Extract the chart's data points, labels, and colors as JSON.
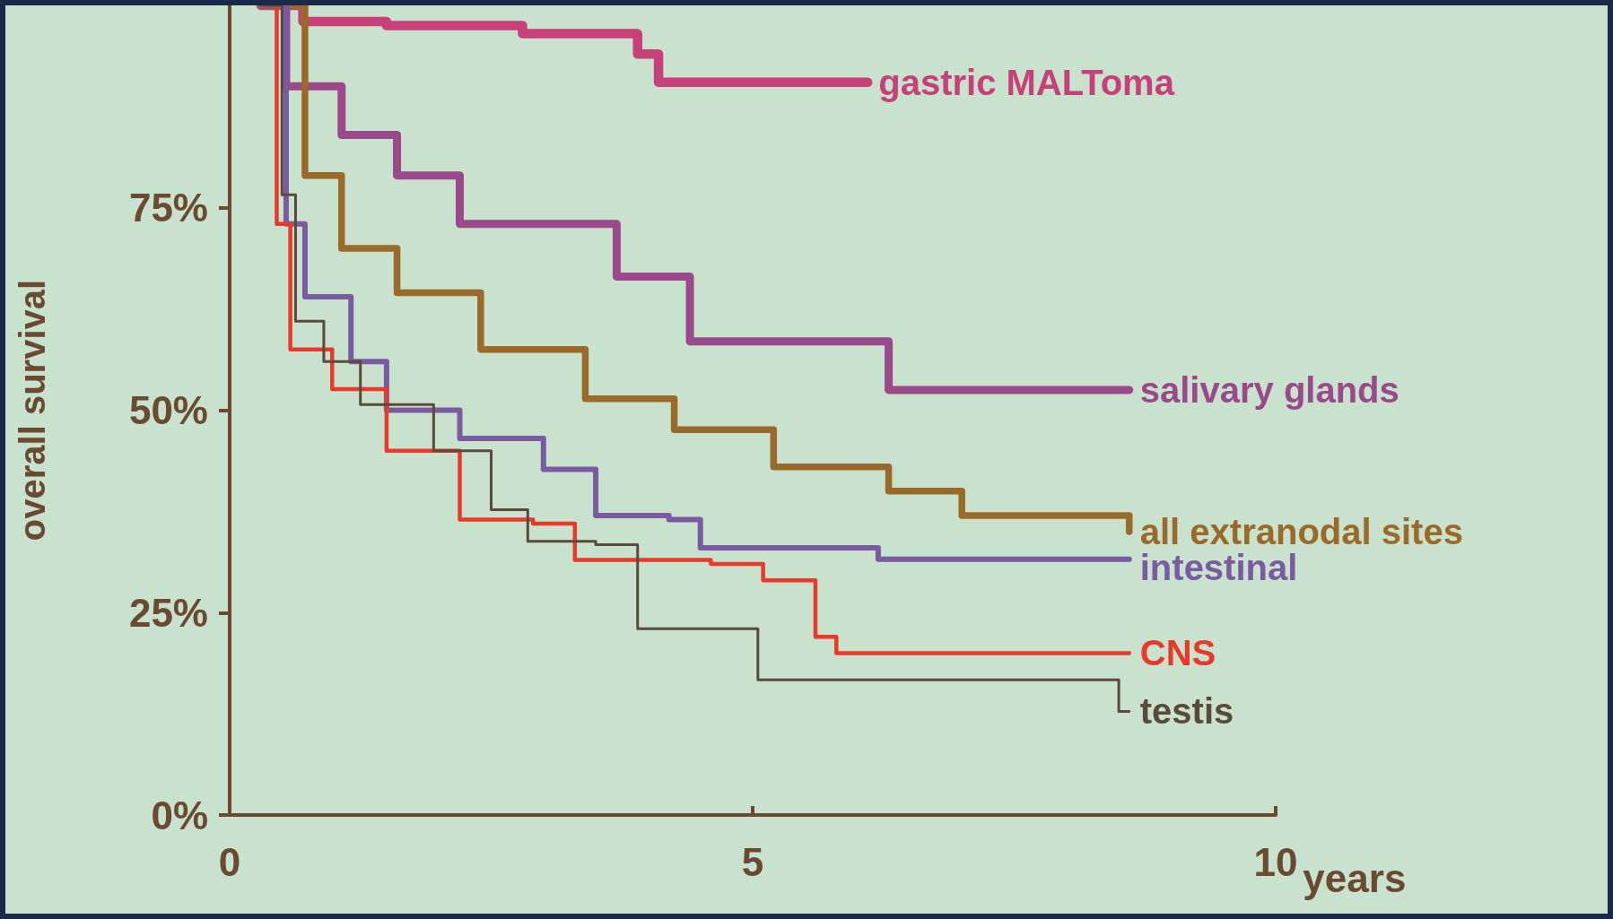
{
  "chart_data": {
    "type": "step",
    "xlabel": "years",
    "ylabel": "overall survival",
    "xlim": [
      0,
      10
    ],
    "xticks": [
      0,
      5,
      10
    ],
    "ylim": [
      0,
      100
    ],
    "yticks": [
      {
        "value": 0,
        "label": "0%"
      },
      {
        "value": 25,
        "label": "25%"
      },
      {
        "value": 50,
        "label": "50%"
      },
      {
        "value": 75,
        "label": "75%"
      }
    ],
    "grid": false,
    "legend": false,
    "marker": "none",
    "line_style": "solid",
    "series": [
      {
        "name": "gastric MALToma",
        "color": "#c8407a",
        "x": [
          0.3,
          0.7,
          1.5,
          2.8,
          3.9,
          4.1,
          6.1
        ],
        "values": [
          100,
          98,
          97.5,
          96.5,
          94,
          90.5,
          90.5
        ]
      },
      {
        "name": "salivary glands",
        "color": "#9a4a8a",
        "x": [
          0.3,
          0.54,
          1.07,
          1.6,
          2.2,
          3.2,
          3.7,
          4.4,
          5.8,
          6.3,
          8.6
        ],
        "values": [
          100,
          90,
          84,
          79,
          73,
          73,
          66.5,
          58.5,
          58.5,
          52.5,
          52.5
        ]
      },
      {
        "name": "all extranodal sites",
        "color": "#9a6a2a",
        "x": [
          0.3,
          0.72,
          1.07,
          1.6,
          2.4,
          3.4,
          4.25,
          5.2,
          6.3,
          7.0,
          8.6
        ],
        "values": [
          100,
          79,
          70,
          64.5,
          57.5,
          51.4,
          47.6,
          43,
          40,
          37,
          35
        ]
      },
      {
        "name": "intestinal",
        "color": "#7a5aa0",
        "x": [
          0.3,
          0.54,
          0.72,
          1.16,
          1.5,
          2.2,
          3.0,
          3.5,
          4.2,
          4.5,
          6.2,
          8.6
        ],
        "values": [
          100,
          73,
          64,
          56,
          50,
          46.5,
          42.7,
          37,
          36.5,
          33,
          31.6,
          31.6
        ]
      },
      {
        "name": "CNS",
        "color": "#e83a2a",
        "x": [
          0.3,
          0.45,
          0.58,
          0.98,
          1.5,
          2.2,
          2.9,
          3.3,
          4.6,
          5.1,
          5.6,
          5.8,
          8.6
        ],
        "values": [
          100,
          73,
          57.5,
          52.6,
          45,
          36.5,
          36,
          31.5,
          31,
          29,
          22,
          20,
          20
        ]
      },
      {
        "name": "testis",
        "color": "#5a4a3a",
        "x": [
          0.3,
          0.5,
          0.63,
          0.9,
          1.25,
          1.95,
          2.5,
          2.85,
          3.5,
          3.9,
          4.65,
          5.05,
          8.15,
          8.5,
          8.6
        ],
        "values": [
          100,
          76.6,
          61,
          56,
          50.7,
          45,
          37.7,
          33.8,
          33.4,
          23,
          23,
          16.7,
          16.7,
          12.8,
          12.8
        ]
      }
    ]
  }
}
